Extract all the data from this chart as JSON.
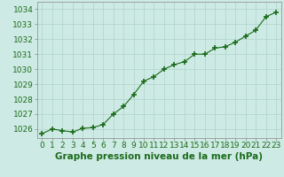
{
  "x": [
    0,
    1,
    2,
    3,
    4,
    5,
    6,
    7,
    8,
    9,
    10,
    11,
    12,
    13,
    14,
    15,
    16,
    17,
    18,
    19,
    20,
    21,
    22,
    23
  ],
  "y": [
    1025.7,
    1026.0,
    1025.9,
    1025.8,
    1026.05,
    1026.1,
    1026.3,
    1027.0,
    1027.5,
    1028.3,
    1029.2,
    1029.5,
    1030.0,
    1030.3,
    1030.5,
    1031.0,
    1031.0,
    1031.4,
    1031.5,
    1031.8,
    1032.2,
    1032.6,
    1033.5,
    1033.8
  ],
  "line_color": "#1a6b1a",
  "marker_color": "#1a6b1a",
  "bg_color": "#ceeae4",
  "grid_color": "#add4cc",
  "title": "Graphe pression niveau de la mer (hPa)",
  "xlabel_ticks": [
    0,
    1,
    2,
    3,
    4,
    5,
    6,
    7,
    8,
    9,
    10,
    11,
    12,
    13,
    14,
    15,
    16,
    17,
    18,
    19,
    20,
    21,
    22,
    23
  ],
  "ytick_labels": [
    1026,
    1027,
    1028,
    1029,
    1030,
    1031,
    1032,
    1033,
    1034
  ],
  "ylim": [
    1025.4,
    1034.5
  ],
  "xlim": [
    -0.5,
    23.5
  ],
  "title_fontsize": 7.5,
  "tick_fontsize": 6.5,
  "title_color": "#1a6b1a",
  "tick_color": "#1a6b1a",
  "spine_color": "#888888"
}
